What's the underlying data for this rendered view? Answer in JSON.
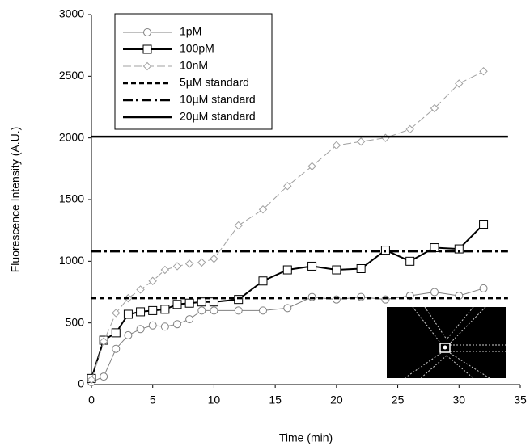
{
  "chart_data": {
    "type": "line",
    "x_label": "Time (min)",
    "y_label": "Fluorescence Intensity (A.U.)",
    "x": [
      0,
      1,
      2,
      3,
      4,
      5,
      6,
      7,
      8,
      9,
      10,
      12,
      14,
      16,
      18,
      20,
      22,
      24,
      26,
      28,
      30,
      32
    ],
    "series": [
      {
        "name": "1pM",
        "color": "#808080",
        "marker": "circle",
        "dash": "none",
        "line_width": 1,
        "values": [
          20,
          65,
          290,
          400,
          450,
          480,
          470,
          490,
          530,
          600,
          600,
          600,
          600,
          620,
          710,
          690,
          710,
          690,
          720,
          750,
          720,
          780
        ]
      },
      {
        "name": "100pM",
        "color": "#000000",
        "marker": "square",
        "dash": "none",
        "line_width": 2,
        "values": [
          50,
          360,
          420,
          570,
          590,
          600,
          610,
          650,
          660,
          670,
          670,
          690,
          840,
          930,
          960,
          930,
          940,
          1090,
          1000,
          1110,
          1100,
          1300
        ]
      },
      {
        "name": "10nM",
        "color": "#a0a0a0",
        "marker": "diamond",
        "dash": "10,4",
        "line_width": 1,
        "values": [
          40,
          350,
          580,
          700,
          770,
          840,
          930,
          960,
          980,
          990,
          1020,
          1290,
          1420,
          1610,
          1770,
          1940,
          1970,
          2000,
          2070,
          2240,
          2440,
          2540
        ]
      },
      {
        "name": "5µM standard",
        "color": "#000000",
        "marker": "none",
        "dash": "6,4",
        "line_width": 2.5,
        "x": [
          0,
          34
        ],
        "values": [
          700,
          700
        ]
      },
      {
        "name": "10µM standard",
        "color": "#000000",
        "marker": "none",
        "dash": "12,4,3,4",
        "line_width": 2.5,
        "x": [
          0,
          34
        ],
        "values": [
          1080,
          1080
        ]
      },
      {
        "name": "20µM standard",
        "color": "#000000",
        "marker": "none",
        "dash": "none",
        "line_width": 2.5,
        "x": [
          0,
          34
        ],
        "values": [
          2010,
          2010
        ]
      }
    ],
    "xlim": [
      0,
      35
    ],
    "xticks": [
      0,
      5,
      10,
      15,
      20,
      25,
      30,
      35
    ],
    "ylim": [
      0,
      3000
    ],
    "yticks": [
      0,
      500,
      1000,
      1500,
      2000,
      2500,
      3000
    ],
    "grid": false
  }
}
